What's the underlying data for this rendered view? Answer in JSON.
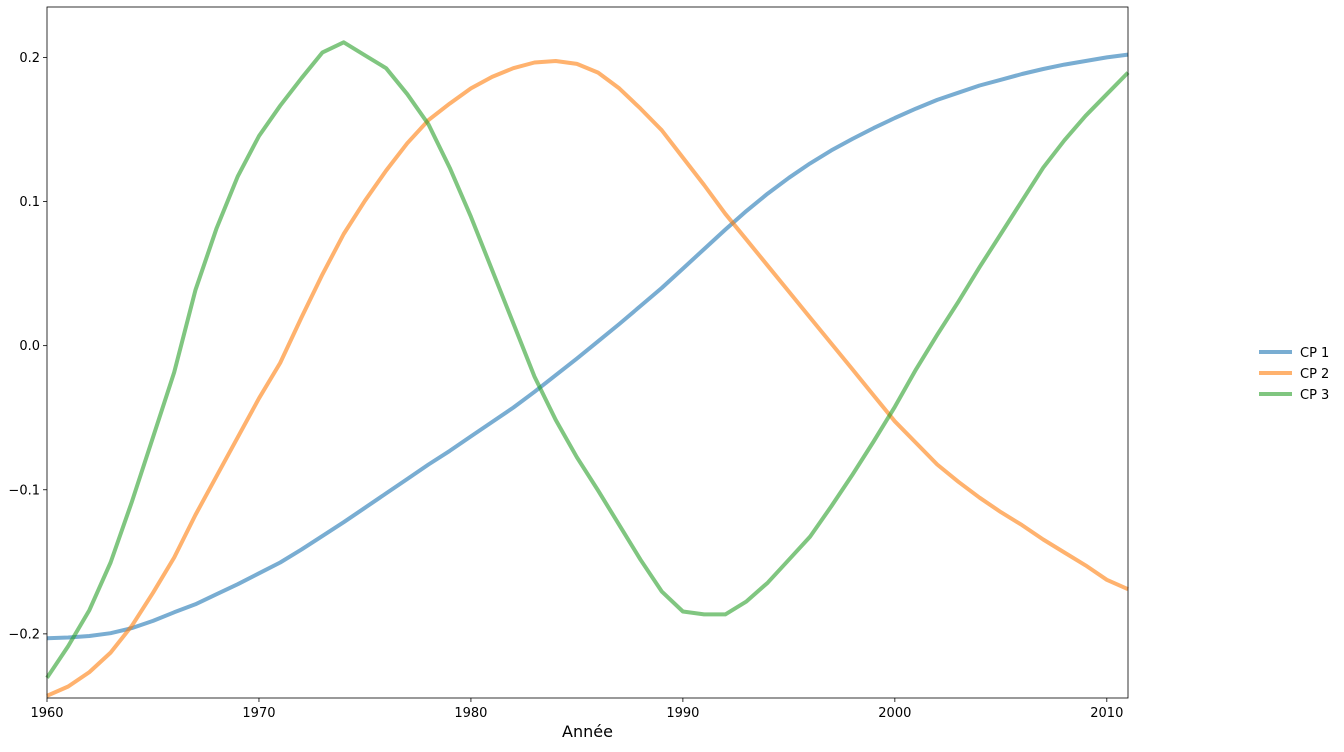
{
  "chart_data": {
    "type": "line",
    "title": "",
    "xlabel": "Année",
    "ylabel": "",
    "xlim": [
      1960,
      2011
    ],
    "ylim": [
      -0.2445,
      0.235
    ],
    "grid": false,
    "legend_position": "right",
    "x_ticks": [
      1960,
      1970,
      1980,
      1990,
      2000,
      2010
    ],
    "x_tick_labels": [
      "1960",
      "1970",
      "1980",
      "1990",
      "2000",
      "2010"
    ],
    "y_ticks": [
      -0.2,
      -0.1,
      0.0,
      0.1,
      0.2
    ],
    "y_tick_labels": [
      "−0.2",
      "−0.1",
      "0.0",
      "0.1",
      "0.2"
    ],
    "x": [
      1960,
      1961,
      1962,
      1963,
      1964,
      1965,
      1966,
      1967,
      1968,
      1969,
      1970,
      1971,
      1972,
      1973,
      1974,
      1975,
      1976,
      1977,
      1978,
      1979,
      1980,
      1981,
      1982,
      1983,
      1984,
      1985,
      1986,
      1987,
      1988,
      1989,
      1990,
      1991,
      1992,
      1993,
      1994,
      1995,
      1996,
      1997,
      1998,
      1999,
      2000,
      2001,
      2002,
      2003,
      2004,
      2005,
      2006,
      2007,
      2008,
      2009,
      2010,
      2011
    ],
    "series": [
      {
        "name": "CP 1",
        "color": "#1f77b4",
        "values": [
          -0.203,
          -0.2025,
          -0.2015,
          -0.1995,
          -0.196,
          -0.191,
          -0.185,
          -0.1795,
          -0.1725,
          -0.1655,
          -0.158,
          -0.1505,
          -0.1415,
          -0.132,
          -0.1225,
          -0.1125,
          -0.1025,
          -0.0925,
          -0.0825,
          -0.073,
          -0.063,
          -0.053,
          -0.043,
          -0.032,
          -0.0205,
          -0.009,
          0.003,
          0.015,
          0.0275,
          0.04,
          0.0535,
          0.067,
          0.0805,
          0.0935,
          0.1055,
          0.1165,
          0.1265,
          0.1355,
          0.1435,
          0.151,
          0.158,
          0.1645,
          0.1705,
          0.1755,
          0.1805,
          0.1845,
          0.1885,
          0.192,
          0.195,
          0.1975,
          0.2,
          0.202
        ]
      },
      {
        "name": "CP 2",
        "color": "#ff7f0e",
        "values": [
          -0.243,
          -0.2365,
          -0.2265,
          -0.213,
          -0.1945,
          -0.1715,
          -0.147,
          -0.1175,
          -0.0905,
          -0.0635,
          -0.0365,
          -0.012,
          0.0195,
          0.0495,
          0.0775,
          0.1005,
          0.1215,
          0.1405,
          0.1565,
          0.168,
          0.1785,
          0.1865,
          0.1925,
          0.1965,
          0.1975,
          0.1955,
          0.1895,
          0.1785,
          0.1645,
          0.1495,
          0.1305,
          0.1115,
          0.0915,
          0.0735,
          0.0555,
          0.0375,
          0.0195,
          0.0015,
          -0.0165,
          -0.0345,
          -0.0525,
          -0.0675,
          -0.0825,
          -0.0945,
          -0.1055,
          -0.1155,
          -0.1245,
          -0.1345,
          -0.1435,
          -0.1525,
          -0.1625,
          -0.169
        ]
      },
      {
        "name": "CP 3",
        "color": "#2ca02c",
        "values": [
          -0.2305,
          -0.2085,
          -0.1835,
          -0.1505,
          -0.1085,
          -0.0635,
          -0.0185,
          0.0385,
          0.0815,
          0.1175,
          0.1455,
          0.1665,
          0.1855,
          0.2035,
          0.2105,
          0.2015,
          0.1925,
          0.1745,
          0.1535,
          0.1235,
          0.0895,
          0.0525,
          0.0155,
          -0.0215,
          -0.0515,
          -0.0775,
          -0.1005,
          -0.1245,
          -0.1485,
          -0.1705,
          -0.1845,
          -0.1865,
          -0.1865,
          -0.1775,
          -0.1645,
          -0.1485,
          -0.1325,
          -0.1115,
          -0.0895,
          -0.0665,
          -0.0425,
          -0.0165,
          0.0075,
          0.0305,
          0.0545,
          0.0775,
          0.1005,
          0.1235,
          0.1425,
          0.1595,
          0.1745,
          0.1895
        ]
      }
    ]
  }
}
